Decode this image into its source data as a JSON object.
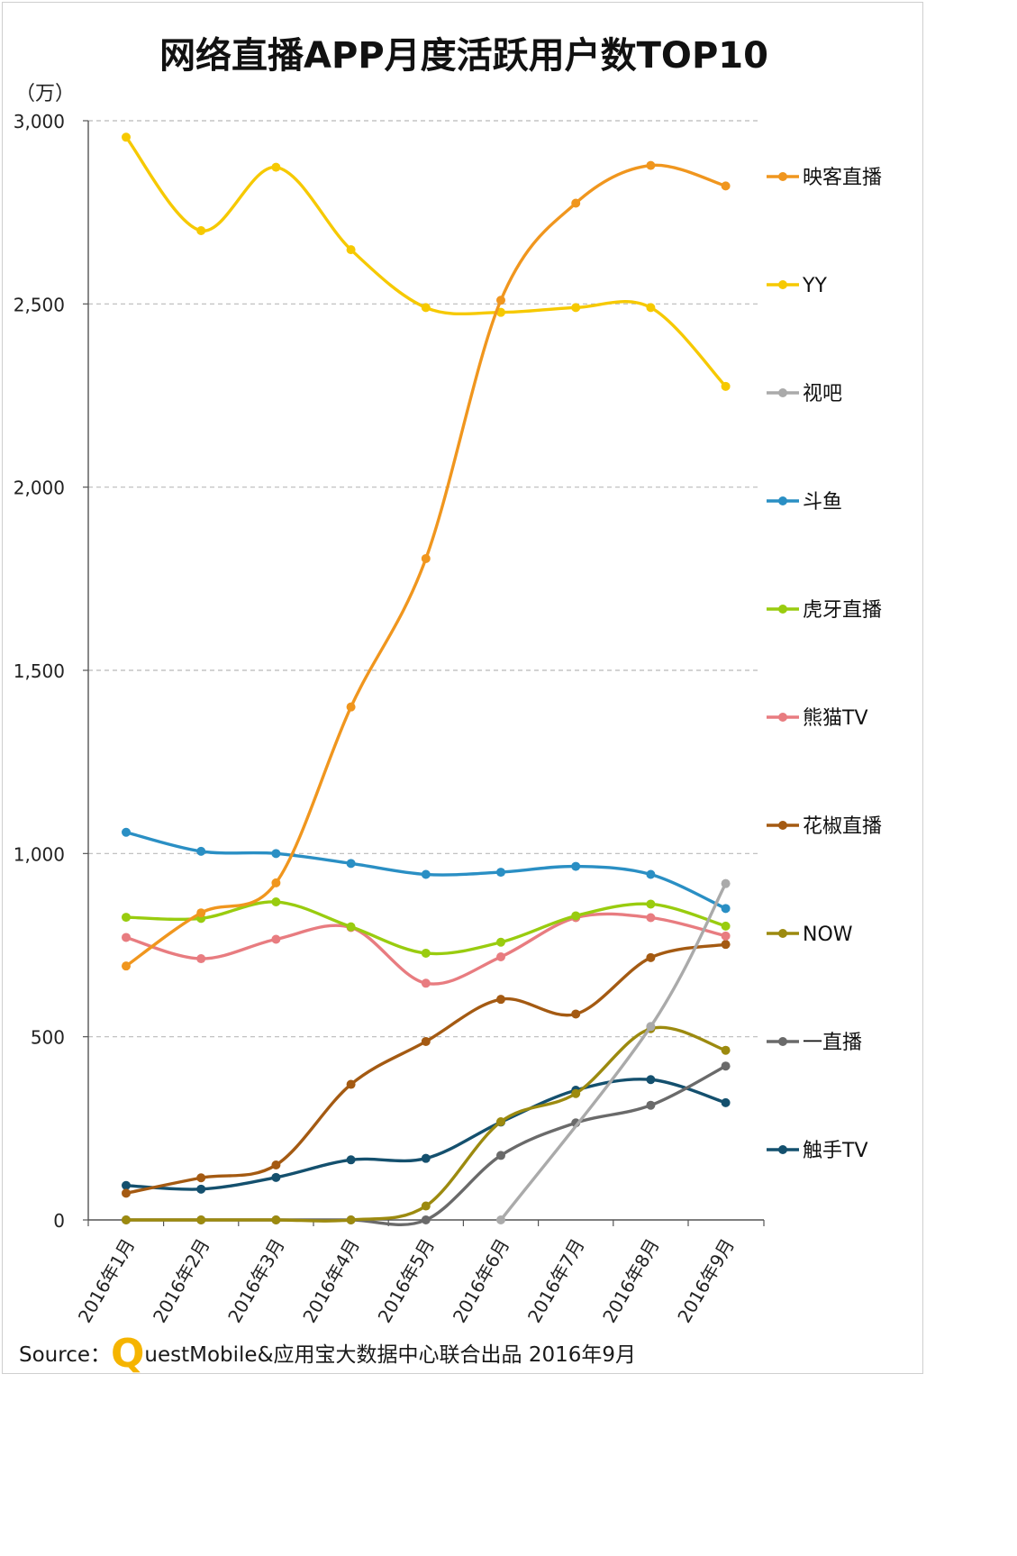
{
  "chart_data": {
    "type": "line",
    "title": "网络直播APP月度活跃用户数TOP10",
    "unit_label": "（万）",
    "xlabel": "",
    "ylabel": "（万）",
    "ylim": [
      0,
      3000
    ],
    "yticks": [
      0,
      500,
      1000,
      1500,
      2000,
      2500,
      3000
    ],
    "ytick_labels": [
      "0",
      "500",
      "1,000",
      "1,500",
      "2,000",
      "2,500",
      "3,000"
    ],
    "grid": true,
    "legend_position": "right",
    "categories": [
      "2016年1月",
      "2016年2月",
      "2016年3月",
      "2016年4月",
      "2016年5月",
      "2016年6月",
      "2016年7月",
      "2016年8月",
      "2016年9月"
    ],
    "series": [
      {
        "name": "映客直播",
        "color": "#f0961e",
        "values": [
          693,
          838,
          920,
          1400,
          1805,
          2510,
          2775,
          2878,
          2822
        ]
      },
      {
        "name": "YY",
        "color": "#f6c900",
        "values": [
          2955,
          2700,
          2873,
          2648,
          2490,
          2477,
          2490,
          2490,
          2275
        ]
      },
      {
        "name": "视吧",
        "color": "#aaaaaa",
        "values": [
          null,
          null,
          null,
          null,
          null,
          0,
          null,
          528,
          918
        ]
      },
      {
        "name": "斗鱼",
        "color": "#2a8fc4",
        "values": [
          1058,
          1006,
          1000,
          973,
          943,
          949,
          965,
          943,
          850
        ]
      },
      {
        "name": "虎牙直播",
        "color": "#99cc0f",
        "values": [
          826,
          823,
          868,
          800,
          728,
          758,
          830,
          862,
          802
        ]
      },
      {
        "name": "熊猫TV",
        "color": "#e87c80",
        "values": [
          771,
          713,
          766,
          798,
          646,
          718,
          825,
          825,
          775
        ]
      },
      {
        "name": "花椒直播",
        "color": "#a45a12",
        "values": [
          73,
          115,
          150,
          370,
          487,
          602,
          562,
          716,
          752
        ]
      },
      {
        "name": "NOW",
        "color": "#9c8a0f",
        "values": [
          0,
          0,
          0,
          0,
          38,
          268,
          345,
          522,
          463
        ]
      },
      {
        "name": "一直播",
        "color": "#6a6a6a",
        "values": [
          0,
          0,
          0,
          0,
          0,
          176,
          265,
          313,
          420
        ]
      },
      {
        "name": "触手TV",
        "color": "#14506e",
        "values": [
          94,
          84,
          116,
          164,
          168,
          267,
          354,
          383,
          320
        ]
      }
    ]
  },
  "footer": {
    "source_prefix": "Source：",
    "brand_q": "Q",
    "source_rest": "uestMobile&应用宝大数据中心联合出品  2016年9月"
  }
}
